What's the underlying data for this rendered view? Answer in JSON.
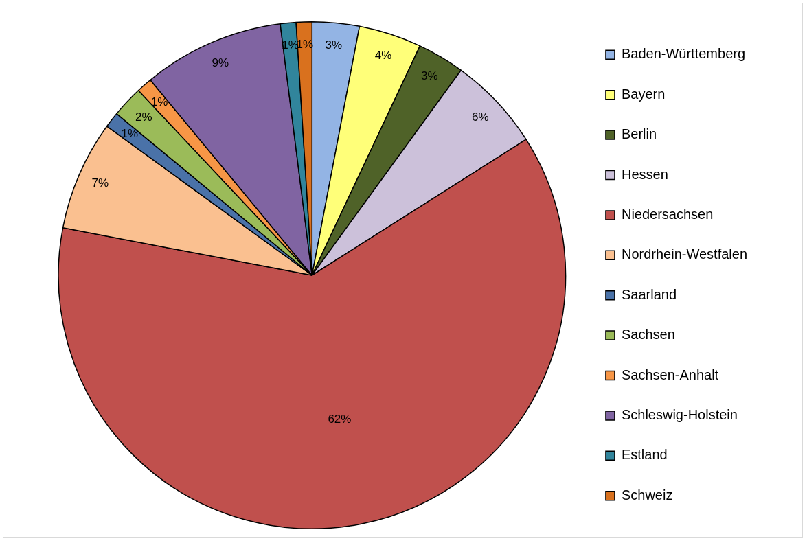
{
  "chart_data": {
    "type": "pie",
    "categories": [
      "Baden-Württemberg",
      "Bayern",
      "Berlin",
      "Hessen",
      "Niedersachsen",
      "Nordrhein-Westfalen",
      "Saarland",
      "Sachsen",
      "Sachsen-Anhalt",
      "Schleswig-Holstein",
      "Estland",
      "Schweiz"
    ],
    "values": [
      3,
      4,
      3,
      6,
      62,
      7,
      1,
      2,
      1,
      9,
      1,
      1
    ],
    "colors": [
      "#93b4e4",
      "#ffff79",
      "#4f6228",
      "#ccc1da",
      "#c0504d",
      "#fac090",
      "#4a72a8",
      "#9bbb59",
      "#f79646",
      "#8064a2",
      "#31859c",
      "#d9711e"
    ],
    "value_labels": [
      "3%",
      "4%",
      "3%",
      "6%",
      "62%",
      "7%",
      "1%",
      "2%",
      "1%",
      "9%",
      "1%",
      "1%"
    ],
    "legend": "right"
  }
}
